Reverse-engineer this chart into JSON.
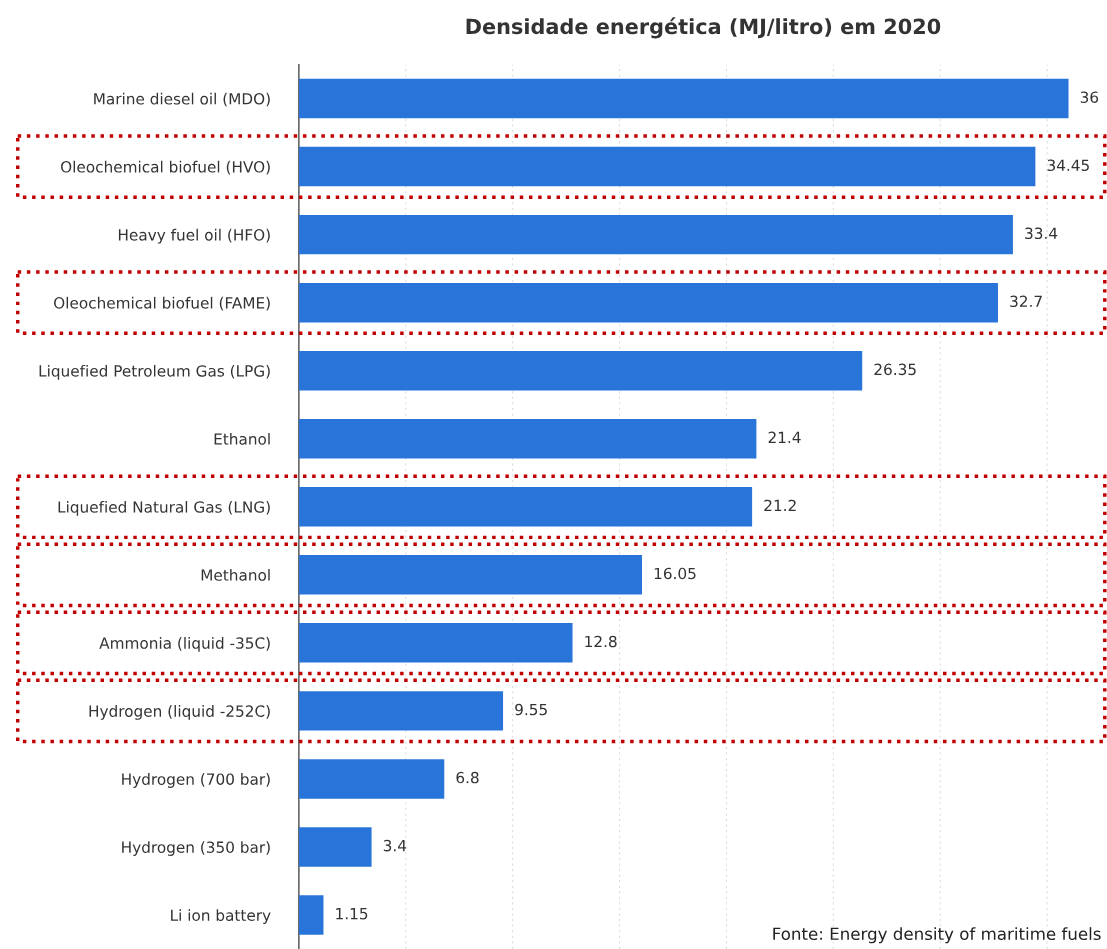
{
  "chart_data": {
    "type": "bar",
    "orientation": "horizontal",
    "title": "Densidade energética (MJ/litro) em 2020",
    "categories": [
      "Marine diesel oil (MDO)",
      "Oleochemical biofuel (HVO)",
      "Heavy fuel oil (HFO)",
      "Oleochemical biofuel (FAME)",
      "Liquefied Petroleum Gas (LPG)",
      "Ethanol",
      "Liquefied Natural Gas (LNG)",
      "Methanol",
      "Ammonia (liquid -35C)",
      "Hydrogen (liquid -252C)",
      "Hydrogen (700 bar)",
      "Hydrogen (350 bar)",
      "Li ion battery"
    ],
    "values": [
      36,
      34.45,
      33.4,
      32.7,
      26.35,
      21.4,
      21.2,
      16.05,
      12.8,
      9.55,
      6.8,
      3.4,
      1.15
    ],
    "color": "#2874d8",
    "data_labels": true,
    "grid": "x",
    "tick_labels": "y",
    "annotations": [
      "Fonte: Energy density of maritime fuels"
    ]
  }
}
